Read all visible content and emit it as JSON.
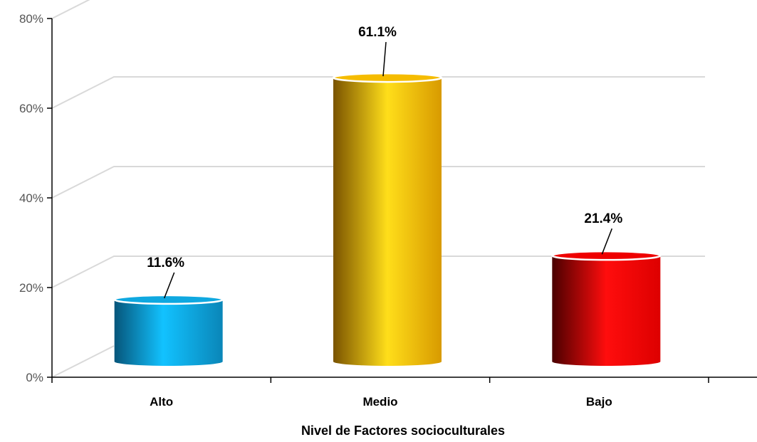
{
  "chart_data": {
    "type": "bar",
    "categories": [
      "Alto",
      "Medio",
      "Bajo"
    ],
    "values": [
      11.6,
      61.1,
      21.4
    ],
    "data_labels": [
      "11.6%",
      "61.1%",
      "21.4%"
    ],
    "xlabel": "Nivel de Factores socioculturales",
    "ylabel": "",
    "ylim": [
      0,
      80
    ],
    "yticks": [
      0,
      20,
      40,
      60,
      80
    ],
    "ytick_labels": [
      "0%",
      "20%",
      "40%",
      "60%",
      "80%"
    ],
    "grid": true,
    "legend": "none",
    "bar_colors": [
      "#0fa8e0",
      "#f5bc00",
      "#ee0000"
    ]
  }
}
